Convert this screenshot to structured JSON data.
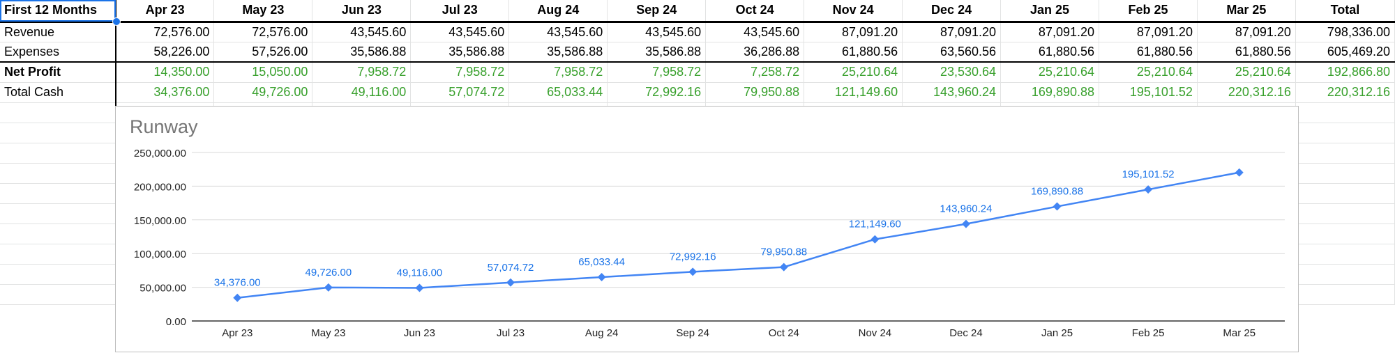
{
  "sheet": {
    "corner": "First 12 Months",
    "months": [
      "Apr 23",
      "May 23",
      "Jun 23",
      "Jul 23",
      "Aug 24",
      "Sep 24",
      "Oct 24",
      "Nov 24",
      "Dec 24",
      "Jan 25",
      "Feb 25",
      "Mar 25"
    ],
    "total_label": "Total",
    "rows": [
      {
        "label": "Revenue",
        "values": [
          "72,576.00",
          "72,576.00",
          "43,545.60",
          "43,545.60",
          "43,545.60",
          "43,545.60",
          "43,545.60",
          "87,091.20",
          "87,091.20",
          "87,091.20",
          "87,091.20",
          "87,091.20"
        ],
        "total": "798,336.00"
      },
      {
        "label": "Expenses",
        "values": [
          "58,226.00",
          "57,526.00",
          "35,586.88",
          "35,586.88",
          "35,586.88",
          "35,586.88",
          "36,286.88",
          "61,880.56",
          "63,560.56",
          "61,880.56",
          "61,880.56",
          "61,880.56"
        ],
        "total": "605,469.20"
      },
      {
        "label": "Net Profit",
        "values": [
          "14,350.00",
          "15,050.00",
          "7,958.72",
          "7,958.72",
          "7,958.72",
          "7,958.72",
          "7,258.72",
          "25,210.64",
          "23,530.64",
          "25,210.64",
          "25,210.64",
          "25,210.64"
        ],
        "total": "192,866.80"
      },
      {
        "label": "Total Cash",
        "values": [
          "34,376.00",
          "49,726.00",
          "49,116.00",
          "57,074.72",
          "65,033.44",
          "72,992.16",
          "79,950.88",
          "121,149.60",
          "143,960.24",
          "169,890.88",
          "195,101.52",
          "220,312.16"
        ],
        "total": "220,312.16"
      }
    ]
  },
  "colors": {
    "series": "#4285f4",
    "label": "#1a73e8",
    "positive": "#38a02c",
    "selection": "#1a73e8"
  },
  "chart_data": {
    "type": "line",
    "title": "Runway",
    "categories": [
      "Apr 23",
      "May 23",
      "Jun 23",
      "Jul 23",
      "Aug 24",
      "Sep 24",
      "Oct 24",
      "Nov 24",
      "Dec 24",
      "Jan 25",
      "Feb 25",
      "Mar 25"
    ],
    "series": [
      {
        "values": [
          34376.0,
          49726.0,
          49116.0,
          57074.72,
          65033.44,
          72992.16,
          79950.88,
          121149.6,
          143960.24,
          169890.88,
          195101.52,
          220312.16
        ]
      }
    ],
    "data_labels": [
      "34,376.00",
      "49,726.00",
      "49,116.00",
      "57,074.72",
      "65,033.44",
      "72,992.16",
      "79,950.88",
      "121,149.60",
      "143,960.24",
      "169,890.88",
      "195,101.52",
      ""
    ],
    "y_ticks": [
      "0.00",
      "50,000.00",
      "100,000.00",
      "150,000.00",
      "200,000.00",
      "250,000.00"
    ],
    "ylim": [
      0,
      250000
    ],
    "xlabel": "",
    "ylabel": "",
    "grid": true,
    "marker": "diamond"
  }
}
